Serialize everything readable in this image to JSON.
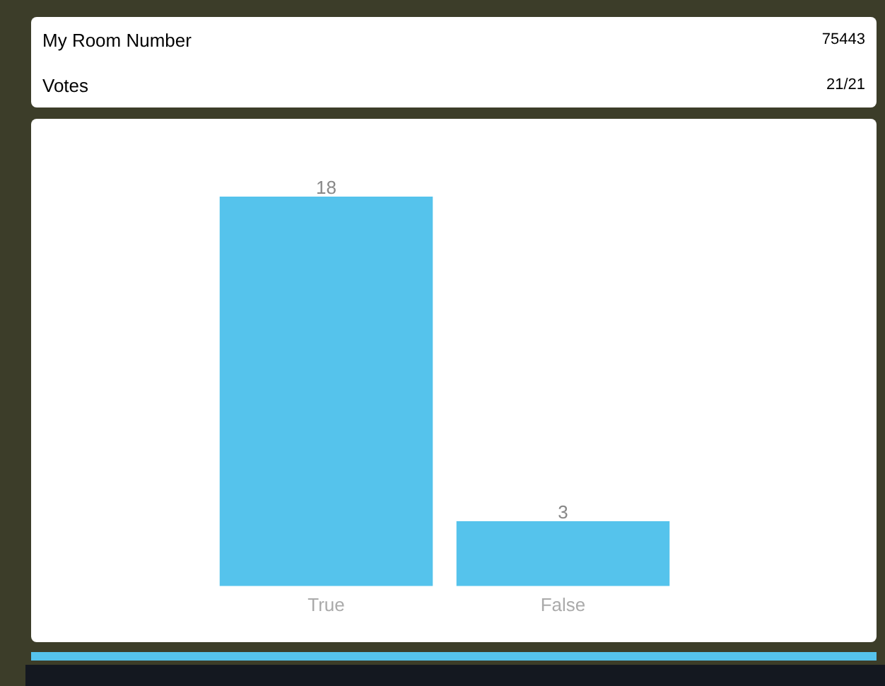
{
  "chart_data": {
    "type": "bar",
    "annotations": [
      "My Room Number",
      "75443",
      "Votes",
      "21/21"
    ],
    "categories": [
      "True",
      "False"
    ],
    "values": [
      18,
      3
    ],
    "color": "#55c3ec",
    "data_labels": true,
    "grid": false,
    "legend": false
  }
}
